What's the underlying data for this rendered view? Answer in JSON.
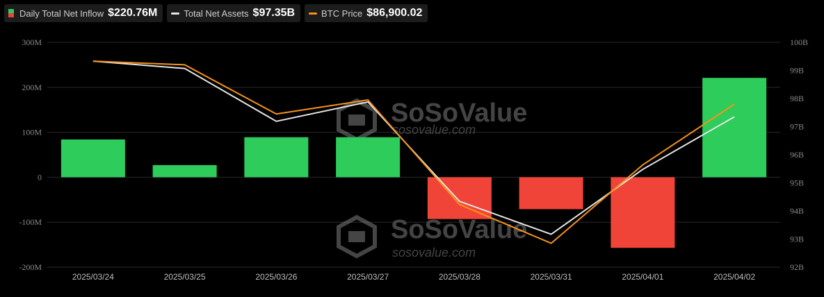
{
  "legend": [
    {
      "label": "Daily Total Net Inflow",
      "value": "$220.76M",
      "kind": "bar",
      "color_pos": "#2ecc5a",
      "color_neg": "#f04438"
    },
    {
      "label": "Total Net Assets",
      "value": "$97.35B",
      "kind": "line",
      "color": "#e6e6e6"
    },
    {
      "label": "BTC Price",
      "value": "$86,900.02",
      "kind": "line",
      "color": "#f7931a"
    }
  ],
  "watermark": {
    "brand": "SoSoValue",
    "site": "sosovalue.com"
  },
  "chart_data": {
    "type": "bar",
    "categories": [
      "2025/03/24",
      "2025/03/25",
      "2025/03/26",
      "2025/03/27",
      "2025/03/28",
      "2025/03/31",
      "2025/04/01",
      "2025/04/02"
    ],
    "series": [
      {
        "name": "Daily Total Net Inflow",
        "type": "bar",
        "axis": "left",
        "unit": "M",
        "values": [
          84,
          27,
          89,
          89,
          -93,
          -71,
          -157,
          221
        ]
      },
      {
        "name": "Total Net Assets",
        "type": "line",
        "axis": "right",
        "unit": "B",
        "values": [
          99.33,
          99.07,
          97.19,
          97.88,
          94.34,
          93.17,
          95.48,
          97.35
        ]
      },
      {
        "name": "BTC Price",
        "type": "line",
        "axis": "right",
        "values": [
          99.33,
          99.2,
          97.45,
          97.95,
          94.23,
          92.85,
          95.64,
          97.8
        ]
      }
    ],
    "left_axis": {
      "min": -200,
      "max": 300,
      "ticks": [
        300,
        200,
        100,
        0,
        -100,
        -200
      ],
      "tick_labels": [
        "300M",
        "200M",
        "100M",
        "0",
        "-100M",
        "-200M"
      ]
    },
    "right_axis": {
      "min": 92,
      "max": 100,
      "ticks": [
        100,
        99,
        98,
        97,
        96,
        95,
        94,
        93,
        92
      ],
      "tick_labels": [
        "100B",
        "99B",
        "98B",
        "97B",
        "96B",
        "95B",
        "94B",
        "93B",
        "92B"
      ]
    },
    "grid": true,
    "colors": {
      "positive": "#2ecc5a",
      "negative": "#f04438",
      "assets_line": "#e6e6e6",
      "price_line": "#f7931a",
      "grid": "#2a2a2a"
    }
  }
}
